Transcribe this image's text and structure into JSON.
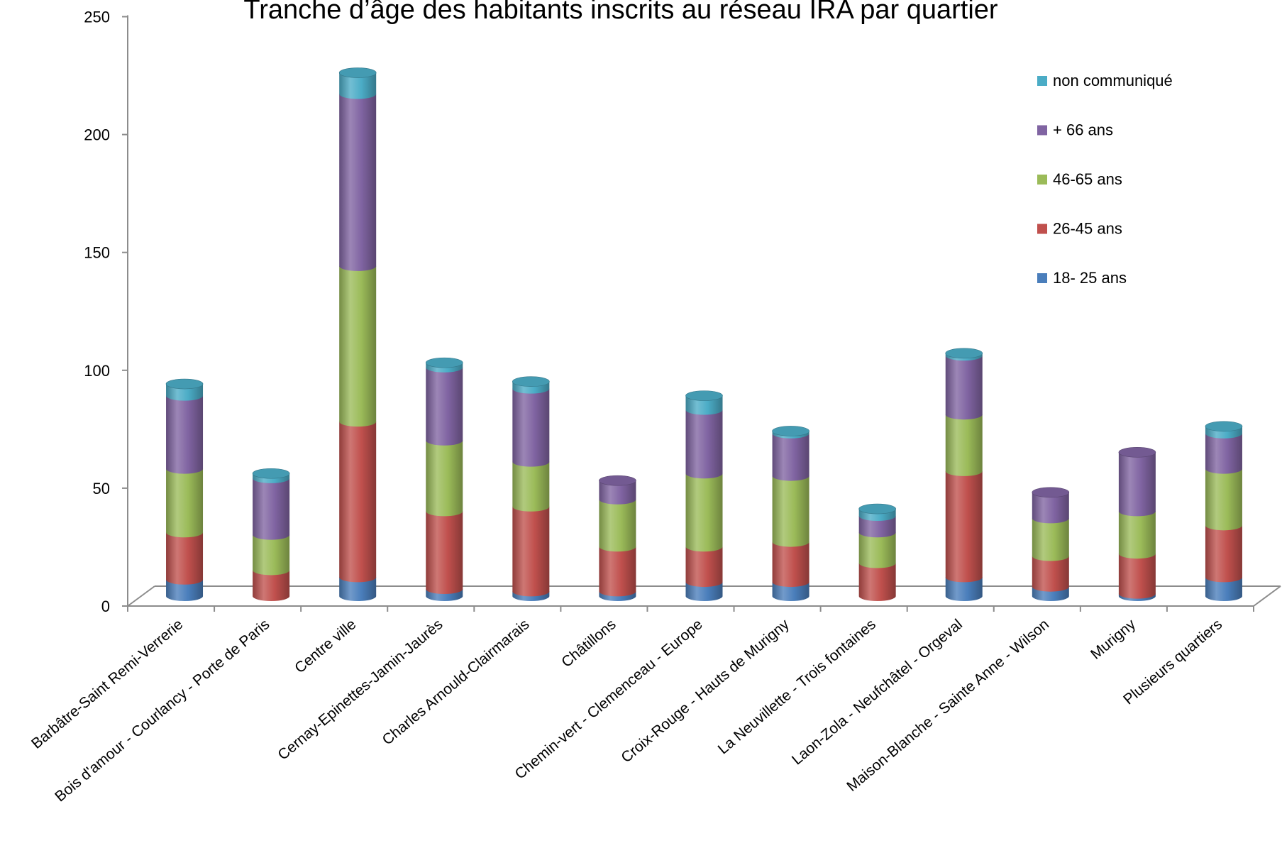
{
  "chart_data": {
    "type": "bar",
    "stacked": true,
    "style": "3d-cylinder",
    "title": "Tranche d’âge des habitants inscrits au réseau IRA par quartier",
    "xlabel": "",
    "ylabel": "",
    "ylim": [
      0,
      250
    ],
    "yticks": [
      0,
      50,
      100,
      150,
      200,
      250
    ],
    "grid": false,
    "legend_position": "right",
    "categories": [
      "Barbâtre-Saint Remi-Verrerie",
      "Bois d'amour - Courlancy - Porte de Paris",
      "Centre ville",
      "Cernay-Epinettes-Jamin-Jaurès",
      "Charles Arnould-Clairmarais",
      "Châtillons",
      "Chemin-vert - Clemenceau - Europe",
      "Croix-Rouge - Hauts de Murigny",
      "La Neuvillette - Trois fontaines",
      "Laon-Zola - Neufchâtel - Orgeval",
      "Maison-Blanche - Sainte Anne - Wilson",
      "Murigny",
      "Plusieurs quartiers"
    ],
    "series": [
      {
        "name": "18- 25 ans",
        "color": "#4a7ebb",
        "values": [
          7,
          0,
          8,
          3,
          2,
          2,
          6,
          6,
          0,
          8,
          4,
          1,
          8
        ]
      },
      {
        "name": "26-45 ans",
        "color": "#c0504d",
        "values": [
          20,
          11,
          66,
          33,
          36,
          19,
          15,
          17,
          14,
          45,
          13,
          17,
          22
        ]
      },
      {
        "name": "46-65 ans",
        "color": "#9bbb59",
        "values": [
          27,
          15,
          66,
          30,
          19,
          20,
          31,
          28,
          13,
          24,
          16,
          18,
          24
        ]
      },
      {
        "name": "+ 66 ans",
        "color": "#8064a2",
        "values": [
          31,
          24,
          73,
          31,
          31,
          8,
          27,
          18,
          7,
          25,
          11,
          25,
          15
        ]
      },
      {
        "name": "non communiqué",
        "color": "#4bacc6",
        "values": [
          5,
          2,
          9,
          2,
          3,
          0,
          6,
          1,
          3,
          1,
          0,
          0,
          3
        ]
      }
    ]
  }
}
